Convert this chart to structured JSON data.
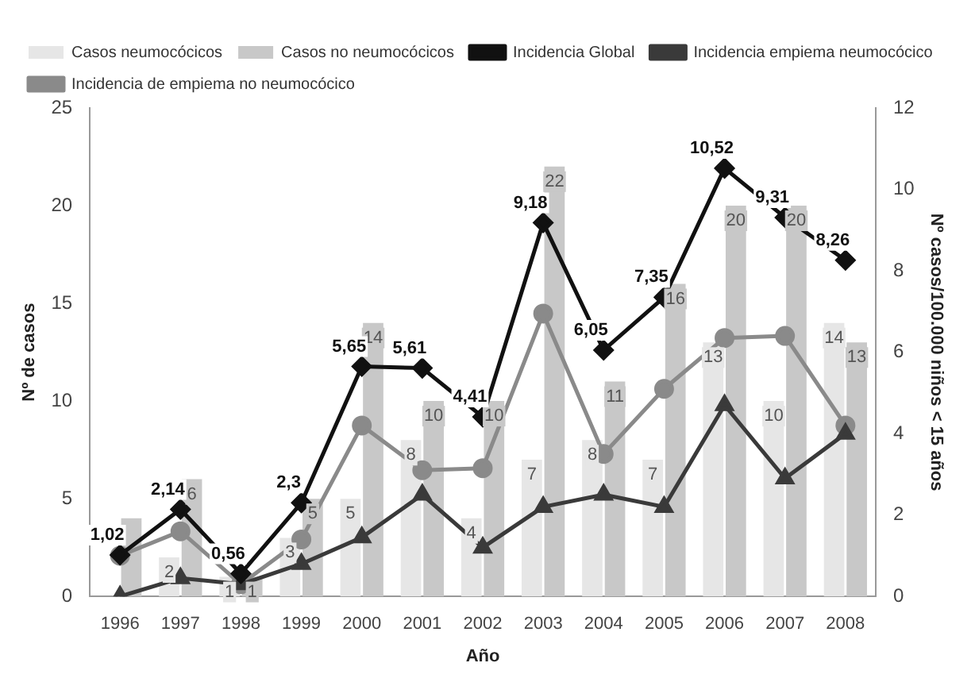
{
  "chart_data": {
    "type": "bar",
    "xlabel": "Año",
    "ylabel": "Nº de casos",
    "y2label": "Nº casos/100.000 niños < 15 años",
    "categories": [
      "1996",
      "1997",
      "1998",
      "1999",
      "2000",
      "2001",
      "2002",
      "2003",
      "2004",
      "2005",
      "2006",
      "2007",
      "2008"
    ],
    "series": [
      {
        "name": "Casos neumocócicos",
        "color": "#e6e6e6",
        "values": [
          0,
          2,
          1,
          3,
          5,
          8,
          4,
          7,
          8,
          7,
          13,
          10,
          14
        ],
        "value_labels": [
          null,
          "2",
          "1",
          "3",
          "5",
          "8",
          "4",
          "7",
          "8",
          "7",
          "13",
          "10",
          "14"
        ]
      },
      {
        "name": "Casos no neumocócicos",
        "color": "#c8c8c8",
        "values": [
          4,
          6,
          1,
          5,
          14,
          10,
          10,
          22,
          11,
          16,
          20,
          20,
          13
        ],
        "value_labels": [
          null,
          "6",
          "1",
          "5",
          "14",
          "10",
          "10",
          "22",
          "11",
          "16",
          "20",
          "20",
          "13"
        ]
      },
      {
        "name": "Incidencia Global",
        "type": "line",
        "axis": "y2",
        "color": "#111111",
        "marker": "diamond",
        "values": [
          1.02,
          2.14,
          0.56,
          2.3,
          5.65,
          5.61,
          4.41,
          9.18,
          6.05,
          7.35,
          10.52,
          9.31,
          8.26
        ],
        "value_labels": [
          "1,02",
          "2,14",
          "0,56",
          "2,3",
          "5,65",
          "5,61",
          "4,41",
          "9,18",
          "6,05",
          "7,35",
          "10,52",
          "9,31",
          "8,26"
        ]
      },
      {
        "name": "Incidencia empiema neumocócico",
        "type": "line",
        "axis": "y2",
        "color": "#3a3a3a",
        "marker": "triangle",
        "values": [
          0,
          0.45,
          0.3,
          0.8,
          1.45,
          2.5,
          1.2,
          2.2,
          2.5,
          2.2,
          4.7,
          2.9,
          4.0
        ]
      },
      {
        "name": "Incidencia de empiema no neumocócico",
        "type": "line",
        "axis": "y2",
        "color": "#8a8a8a",
        "marker": "circle",
        "values": [
          1.0,
          1.6,
          0.3,
          1.4,
          4.2,
          3.1,
          3.15,
          6.95,
          3.5,
          5.1,
          6.35,
          6.4,
          4.2
        ]
      }
    ],
    "ylim": [
      0,
      25
    ],
    "yticks": [
      0,
      5,
      10,
      15,
      20,
      25
    ],
    "y2lim": [
      0,
      12
    ],
    "y2ticks": [
      0,
      2,
      4,
      6,
      8,
      10,
      12
    ],
    "grid": false,
    "legend": "top left"
  }
}
